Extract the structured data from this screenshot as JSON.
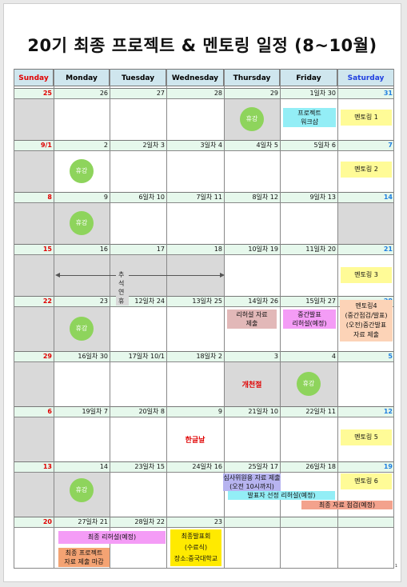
{
  "title": "20기 최종 프로젝트 & 멘토링 일정 (8~10월)",
  "page_number": "1",
  "weekdays": [
    "Sunday",
    "Monday",
    "Tuesday",
    "Wednesday",
    "Thursday",
    "Friday",
    "Saturday"
  ],
  "weeks": [
    [
      "25",
      "26",
      "27",
      "28",
      "29",
      "1일차 30",
      "31"
    ],
    [
      "9/1",
      "2",
      "2일차  3",
      "3일차 4",
      "4일차 5",
      "5일차 6",
      "7"
    ],
    [
      "8",
      "9",
      "6일차 10",
      "7일차 11",
      "8일차 12",
      "9일차 13",
      "14"
    ],
    [
      "15",
      "16",
      "17",
      "18",
      "10일차 19",
      "11일차 20",
      "21"
    ],
    [
      "22",
      "23",
      "12일차 24",
      "13일차 25",
      "14일차 26",
      "15일차 27",
      "28"
    ],
    [
      "29",
      "16일차 30",
      "17일차 10/1",
      "18일차 2",
      "3",
      "4",
      "5"
    ],
    [
      "6",
      "19일차  7",
      "20일차 8",
      "9",
      "21일차 10",
      "22일차 11",
      "12"
    ],
    [
      "13",
      "14",
      "23일차 15",
      "24일차 16",
      "25일차 17",
      "26일차 18",
      "19"
    ],
    [
      "20",
      "27일차 21",
      "28일차 22",
      "23",
      "",
      "",
      ""
    ]
  ],
  "events": {
    "rest": "휴강",
    "mentoring1": "멘토링 1",
    "mentoring2": "멘토링 2",
    "mentoring3": "멘토링 3",
    "mentoring5": "멘토링 5",
    "mentoring6": "멘토링 6",
    "mentoring4_l1": "멘토링4",
    "mentoring4_l2": "(중간점검/발표)",
    "mentoring4_l3": "(오전)중간발표",
    "mentoring4_l4": "자료 제출",
    "workshop_l1": "프로젝트",
    "workshop_l2": "워크샵",
    "chuseok": "추 석 연 휴",
    "rehearsal_sub_l1": "리허설 자료",
    "rehearsal_sub_l2": "제출",
    "midterm_l1": "중간발표",
    "midterm_l2": "리허설(예정)",
    "gaecheonjeol": "개천절",
    "hangeulnal": "한글날",
    "review_l1": "심사위원용 자료 제출",
    "review_l2": "(오전 10시까지)",
    "presenter_select": "발표자 선정 리허설(예정)",
    "final_check": "최종 자료 점검(예정)",
    "final_rehearsal": "최종 리허설(예정)",
    "final_submit_l1": "최종 프로젝트",
    "final_submit_l2": "자료 제출 마감",
    "final_pres_l1": "최종발표회",
    "final_pres_l2": "(수료식)",
    "final_pres_l3": "장소:중국대학교"
  }
}
